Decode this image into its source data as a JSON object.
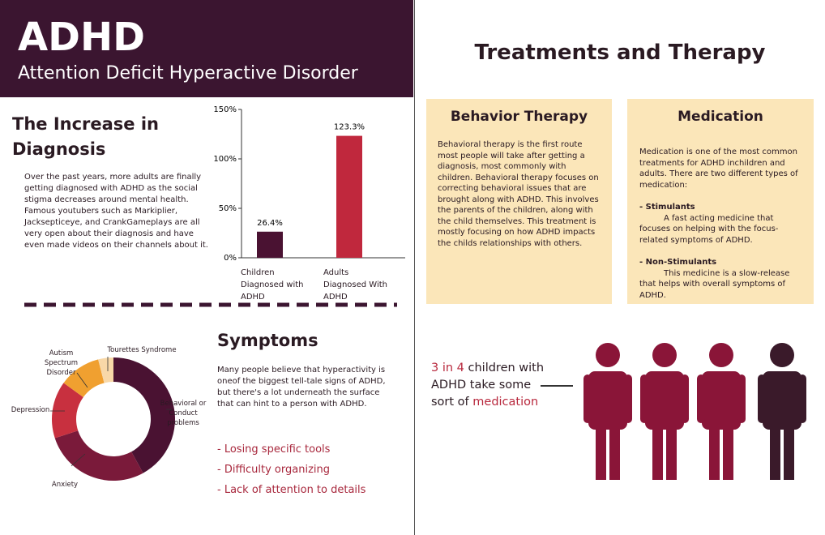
{
  "header": {
    "title": "ADHD",
    "subtitle": "Attention Deficit Hyperactive Disorder"
  },
  "increase": {
    "heading": "The Increase in Diagnosis",
    "body": "Over the past years, more adults are finally getting diagnosed with ADHD as the social stigma decreases around mental health. Famous youtubers such as Markiplier, Jacksepticeye, and CrankGameplays are all very open about their diagnosis and have even made videos on their channels about it."
  },
  "symptoms": {
    "heading": "Symptoms",
    "body": "Many people believe that hyperactivity is oneof the biggest tell-tale signs of ADHD, but there's a lot underneath the surface that can hint to a person with ADHD.",
    "items": [
      "- Losing specific tools",
      "- Difficulty organizing",
      "- Lack of attention to details"
    ]
  },
  "treatments": {
    "title": "Treatments and Therapy",
    "behavior": {
      "heading": "Behavior Therapy",
      "body": "Behavioral therapy is the first route most people will take after getting a diagnosis, most commonly with children. Behavioral therapy focuses on correcting behavioral issues that are brought along with ADHD. This involves the parents of the children, along with the child themselves. This treatment is mostly focusing on how ADHD impacts the childs relationships with others."
    },
    "medication": {
      "heading": "Medication",
      "intro": "Medication is one of the most common treatments for ADHD inchildren and adults. There are two different types of medication:",
      "types": [
        {
          "name": "- Stimulants",
          "text": "A fast acting medicine that focuses on helping with the focus-related symptoms of ADHD."
        },
        {
          "name": "- Non-Stimulants",
          "text": "This medicine is a slow-release that helps with overall symptoms of ADHD."
        }
      ]
    },
    "stat": {
      "ratio": "3 in 4",
      "middle": " children with ADHD take some sort of ",
      "highlight": "medication"
    }
  },
  "chart_data": [
    {
      "type": "bar",
      "categories": [
        "Children Diagnosed with ADHD",
        "Adults Diagnosed With ADHD"
      ],
      "values": [
        26.4,
        123.3
      ],
      "value_labels": [
        "26.4%",
        "123.3%"
      ],
      "colors": [
        "#4a1232",
        "#c0283d"
      ],
      "ylim": [
        0,
        150
      ],
      "yticks": [
        {
          "value": 0,
          "label": "0%"
        },
        {
          "value": 50,
          "label": "50%"
        },
        {
          "value": 100,
          "label": "100%"
        },
        {
          "value": 150,
          "label": "150%"
        }
      ]
    },
    {
      "type": "donut",
      "categories": [
        "Behavioral or Conduct problems",
        "Anxiety",
        "Depression",
        "Autism Spectrum Disorder",
        "Tourettes Syndrome"
      ],
      "values": [
        42,
        28,
        15,
        11,
        4
      ],
      "colors": [
        "#4a1232",
        "#7a1a3a",
        "#c8303f",
        "#f0a030",
        "#f8d8a8"
      ]
    }
  ]
}
